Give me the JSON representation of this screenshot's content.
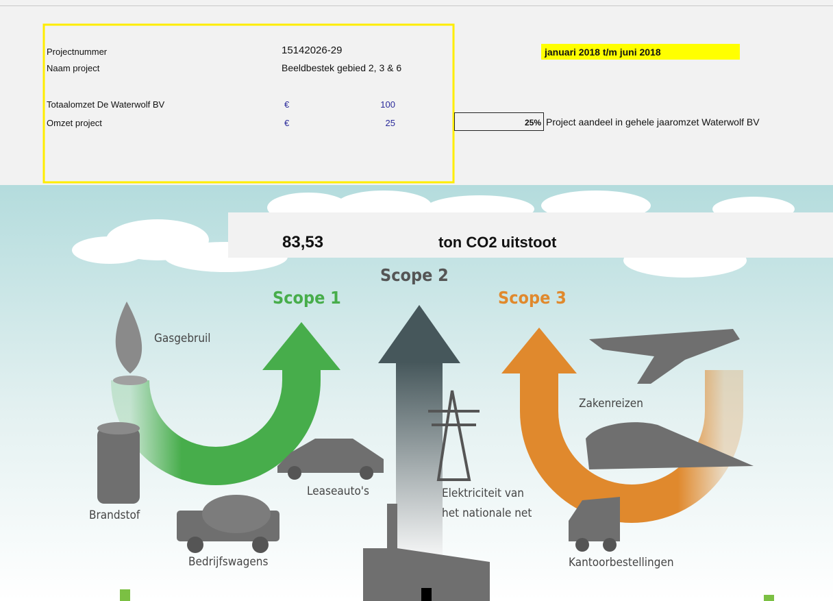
{
  "project": {
    "rows": [
      {
        "label": "Projectnummer",
        "value": "15142026-29"
      },
      {
        "label": "Naam project",
        "value": "Beeldbestek gebied 2, 3 & 6"
      }
    ],
    "finance": [
      {
        "label": "Totaalomzet De Waterwolf BV",
        "currency": "€",
        "amount": "100"
      },
      {
        "label": "Omzet project",
        "currency": "€",
        "amount": "25"
      }
    ],
    "share": {
      "value": "25%",
      "label": "Project aandeel in gehele jaaromzet Waterwolf BV"
    },
    "period": "januari 2018  t/m juni 2018"
  },
  "emissions": {
    "value": "83,53",
    "unit": "ton CO2 uitstoot"
  },
  "infographic": {
    "scopes": [
      "Scope 1",
      "Scope 2",
      "Scope 3"
    ],
    "labels": {
      "gas": "Gasgebruil",
      "fuel": "Brandstof",
      "company_vehicles": "Bedrijfswagens",
      "lease_cars": "Leaseauto's",
      "electricity": [
        "Elektriciteit van",
        "het nationale net"
      ],
      "business_travel": "Zakenreizen",
      "office_orders": "Kantoorbestellingen"
    }
  }
}
